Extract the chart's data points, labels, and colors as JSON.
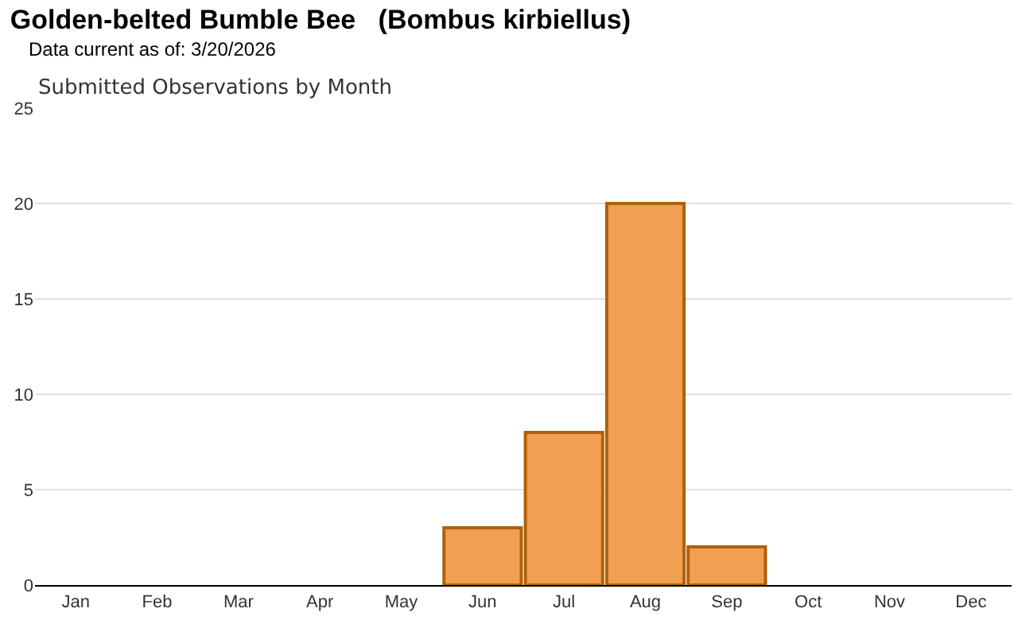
{
  "chart_data": {
    "type": "bar",
    "title": "Golden-belted Bumble Bee   (Bombus kirbiellus)",
    "subtitle": "Data current as of: 3/20/2026",
    "annotations": [
      "Submitted Observations by Month"
    ],
    "categories": [
      "Jan",
      "Feb",
      "Mar",
      "Apr",
      "May",
      "Jun",
      "Jul",
      "Aug",
      "Sep",
      "Oct",
      "Nov",
      "Dec"
    ],
    "values": [
      0,
      0,
      0,
      0,
      0,
      3,
      8,
      20,
      2,
      0,
      0,
      0
    ],
    "color": "#f0a050",
    "ylim": [
      0,
      25
    ],
    "yticks": [
      0,
      5,
      10,
      15,
      20,
      25
    ],
    "grid": "y"
  }
}
